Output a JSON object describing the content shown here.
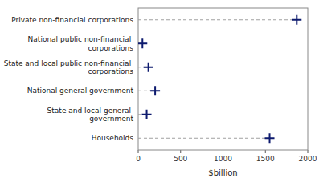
{
  "chart_data": {
    "type": "lollipop",
    "orientation": "horizontal",
    "categories": [
      "Households",
      "State and local general government",
      "National general government",
      "State and local public non-financial corporations",
      "National public non-financial corporations",
      "Private non-financial corporations"
    ],
    "values": [
      1550,
      100,
      200,
      120,
      50,
      1870
    ],
    "color": "#0d1a6e",
    "marker": "plus",
    "line_style": "dashed",
    "xlabel": "$billion",
    "xlim": [
      0,
      2000
    ],
    "xticks": [
      0,
      500,
      1000,
      1500,
      2000
    ],
    "grid": false
  }
}
